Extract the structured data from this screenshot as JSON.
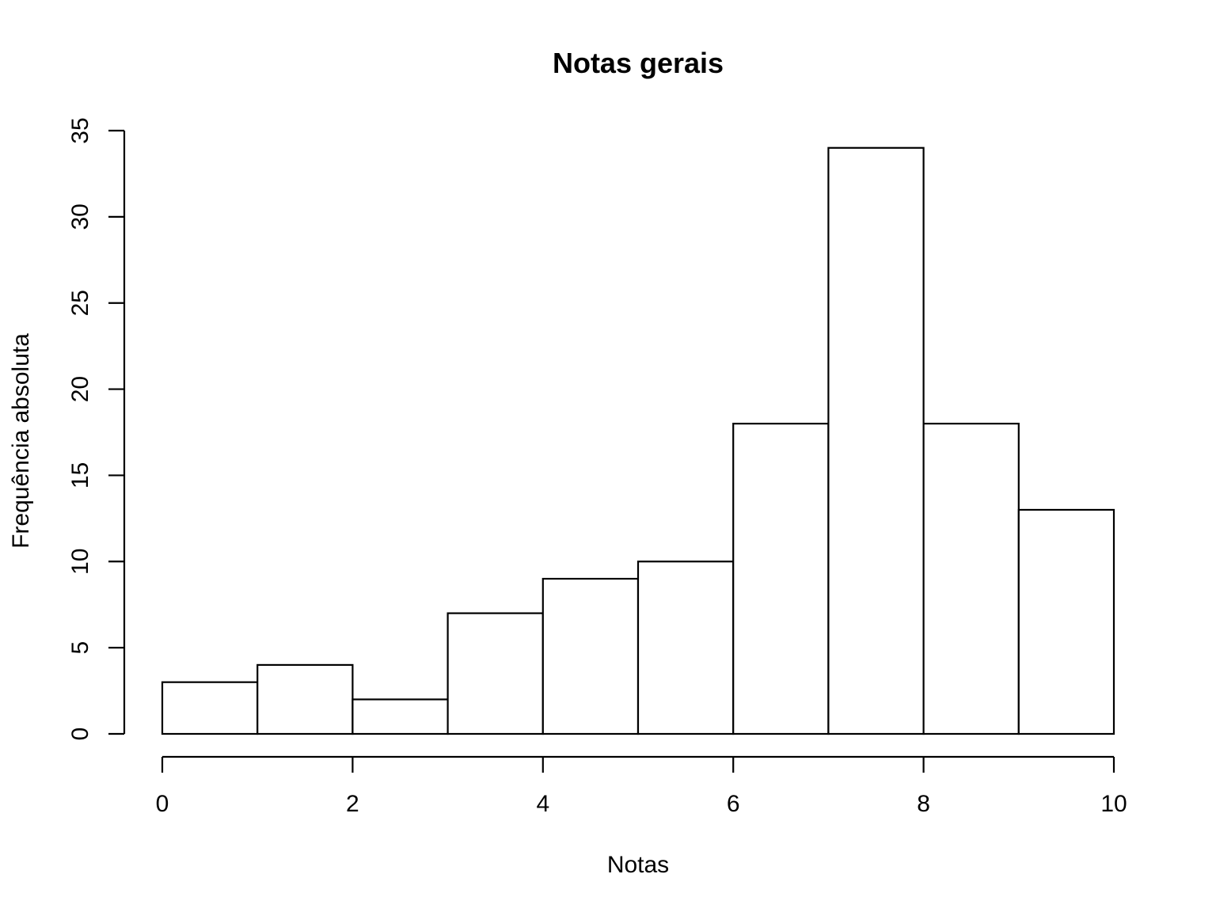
{
  "chart_data": {
    "type": "bar",
    "title": "Notas gerais",
    "xlabel": "Notas",
    "ylabel": "Frequência absoluta",
    "bins": [
      [
        0,
        1
      ],
      [
        1,
        2
      ],
      [
        2,
        3
      ],
      [
        3,
        4
      ],
      [
        4,
        5
      ],
      [
        5,
        6
      ],
      [
        6,
        7
      ],
      [
        7,
        8
      ],
      [
        8,
        9
      ],
      [
        9,
        10
      ]
    ],
    "values": [
      3,
      4,
      2,
      7,
      9,
      10,
      18,
      34,
      18,
      13
    ],
    "xlim": [
      0,
      10
    ],
    "ylim": [
      0,
      35
    ],
    "x_ticks": [
      "0",
      "2",
      "4",
      "6",
      "8",
      "10"
    ],
    "y_ticks": [
      "0",
      "5",
      "10",
      "15",
      "20",
      "25",
      "30",
      "35"
    ],
    "grid": false,
    "legend": "none",
    "colors": {
      "bar_fill": "#ffffff",
      "bar_stroke": "#000000"
    }
  }
}
